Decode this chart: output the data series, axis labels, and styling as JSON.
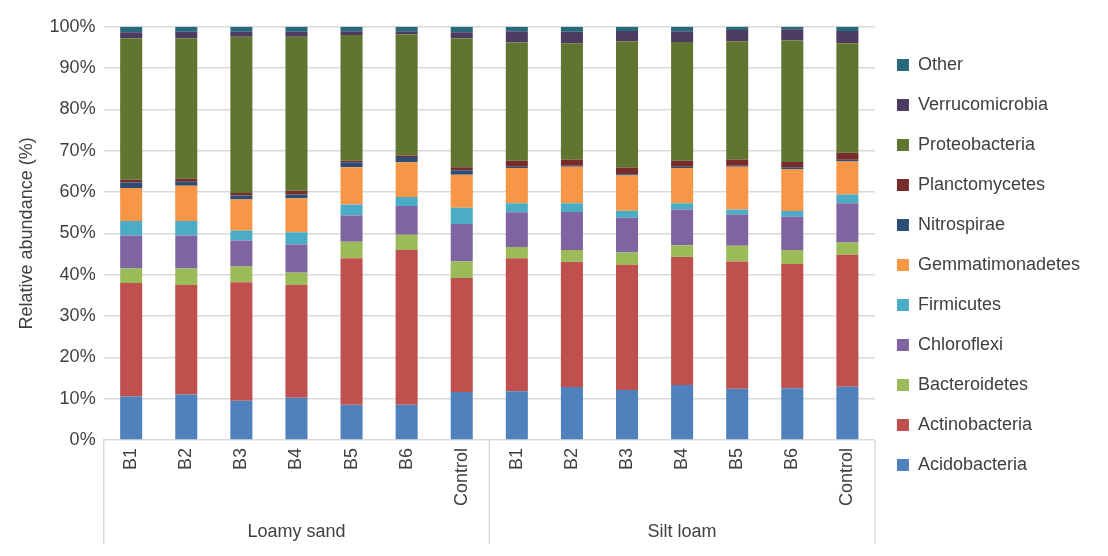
{
  "chart_data": {
    "type": "bar",
    "stacked": true,
    "ylabel": "Relative abundance (%)",
    "categories": [
      "B1",
      "B2",
      "B3",
      "B4",
      "B5",
      "B6",
      "Control",
      "B1",
      "B2",
      "B3",
      "B4",
      "B5",
      "B6",
      "Control"
    ],
    "annotations": [
      "Loamy sand",
      "Silt loam"
    ],
    "ylim": [
      0,
      100
    ],
    "yticks": [
      {
        "value": 0,
        "label": "0%"
      },
      {
        "value": 10,
        "label": "10%"
      },
      {
        "value": 20,
        "label": "20%"
      },
      {
        "value": 30,
        "label": "30%"
      },
      {
        "value": 40,
        "label": "40%"
      },
      {
        "value": 50,
        "label": "50%"
      },
      {
        "value": 60,
        "label": "60%"
      },
      {
        "value": 70,
        "label": "70%"
      },
      {
        "value": 80,
        "label": "80%"
      },
      {
        "value": 90,
        "label": "90%"
      },
      {
        "value": 100,
        "label": "100%"
      }
    ],
    "grid": "y",
    "legend": "right",
    "series": [
      {
        "name": "Acidobacteria",
        "color": "#4f81bd",
        "values": [
          10.5,
          11,
          9.5,
          10.2,
          8.5,
          8.5,
          11.6,
          11.8,
          12.8,
          12.1,
          13.3,
          12.4,
          12.5,
          12.9
        ]
      },
      {
        "name": "Actinobacteria",
        "color": "#c0504d",
        "values": [
          27.5,
          26.5,
          28.7,
          27.3,
          35.5,
          37.5,
          27.6,
          32.2,
          30.3,
          30.3,
          31,
          30.8,
          30.1,
          31.9
        ]
      },
      {
        "name": "Bacteroidetes",
        "color": "#9bbb59",
        "values": [
          3.5,
          4,
          3.8,
          3,
          4,
          3.7,
          4,
          2.7,
          2.9,
          3,
          2.8,
          3.8,
          3.4,
          3
        ]
      },
      {
        "name": "Chloroflexi",
        "color": "#8064a2",
        "values": [
          8,
          8,
          6.3,
          6.8,
          6.3,
          6.9,
          9.1,
          8.4,
          9.2,
          8.4,
          8.7,
          7.5,
          8,
          9.5
        ]
      },
      {
        "name": "Firmicutes",
        "color": "#4bacc6",
        "values": [
          3.5,
          3.5,
          2.4,
          3,
          2.7,
          2.2,
          3.9,
          2.2,
          2.1,
          1.7,
          1.5,
          1.3,
          1.4,
          2.1
        ]
      },
      {
        "name": "Gemmatimonadetes",
        "color": "#f79646",
        "values": [
          8,
          8.5,
          7.5,
          8.2,
          9,
          8.4,
          8,
          8.5,
          8.8,
          8.5,
          8.5,
          10.3,
          10.2,
          8
        ]
      },
      {
        "name": "Nitrospirae",
        "color": "#2c4d75",
        "values": [
          1.3,
          1,
          1,
          0.9,
          1.2,
          1.3,
          1.1,
          0.3,
          0.3,
          0.3,
          0.3,
          0.3,
          0.4,
          0.4
        ]
      },
      {
        "name": "Planctomycetes",
        "color": "#772c2a",
        "values": [
          0.7,
          0.7,
          0.6,
          0.9,
          0.4,
          0.3,
          0.7,
          1.5,
          1.4,
          1.6,
          1.5,
          1.5,
          1.3,
          1.7
        ]
      },
      {
        "name": "Proteobacteria",
        "color": "#5f7530",
        "values": [
          34.2,
          34,
          37.8,
          37.3,
          30.4,
          29.4,
          31.2,
          28.6,
          28.2,
          30.6,
          28.7,
          28.6,
          29.4,
          26.5
        ]
      },
      {
        "name": "Verrucomicrobia",
        "color": "#4d3b62",
        "values": [
          1.5,
          1.6,
          1.2,
          1.2,
          0.9,
          0.7,
          1.5,
          2.7,
          2.8,
          2.5,
          2.6,
          2.7,
          2.7,
          3
        ]
      },
      {
        "name": "Other",
        "color": "#276a7c",
        "values": [
          1.3,
          1.2,
          1.2,
          1.2,
          1.1,
          1.1,
          1.3,
          1.1,
          1.2,
          1,
          1.1,
          0.8,
          0.6,
          1
        ]
      }
    ]
  }
}
